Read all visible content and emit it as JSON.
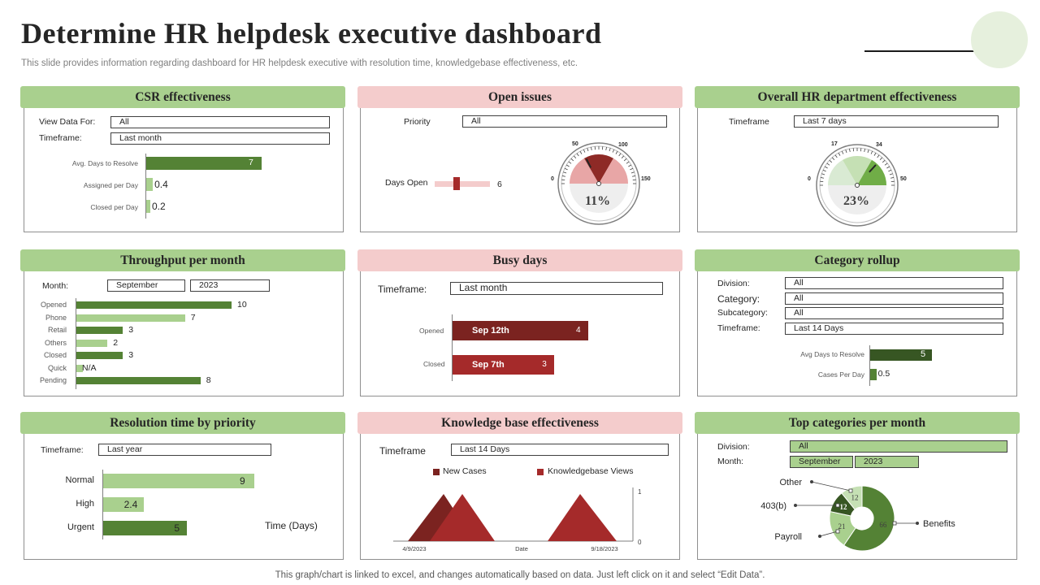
{
  "header": {
    "title": "Determine HR helpdesk executive dashboard",
    "subtitle": "This slide provides information regarding dashboard for HR helpdesk executive with resolution time, knowledgebase effectiveness, etc."
  },
  "footer": "This graph/chart is linked to excel, and changes automatically based on data. Just left click on it and select “Edit Data”.",
  "colors": {
    "green_header": "#a9d08e",
    "pink_header": "#f4cccc",
    "dark_green": "#548235",
    "light_green": "#a9d08e",
    "dark_red": "#7b2320",
    "red": "#a52a2a"
  },
  "csr": {
    "title": "CSR effectiveness",
    "view_label": "View Data For:",
    "view_value": "All",
    "timeframe_label": "Timeframe:",
    "timeframe_value": "Last month"
  },
  "open_issues": {
    "title": "Open issues",
    "priority_label": "Priority",
    "priority_value": "All",
    "days_open_label": "Days Open",
    "days_open_value": "6",
    "gauge": {
      "percent": "11%",
      "ticks": [
        "0",
        "50",
        "100",
        "150"
      ]
    }
  },
  "overall": {
    "title": "Overall HR department  effectiveness",
    "timeframe_label": "Timeframe",
    "timeframe_value": "Last 7 days",
    "gauge": {
      "percent": "23%",
      "ticks": [
        "0",
        "17",
        "34",
        "50"
      ]
    }
  },
  "throughput": {
    "title": "Throughput  per month",
    "month_label": "Month:",
    "month_value": "September",
    "year_value": "2023"
  },
  "busy": {
    "title": "Busy days",
    "timeframe_label": "Timeframe:",
    "timeframe_value": "Last month"
  },
  "rollup": {
    "title": "Category rollup",
    "division_label": "Division:",
    "division_value": "All",
    "category_label": "Category:",
    "category_value": "All",
    "subcategory_label": "Subcategory:",
    "subcategory_value": "All",
    "timeframe_label": "Timeframe:",
    "timeframe_value": "Last 14 Days"
  },
  "resolution": {
    "title": "Resolution time by priority",
    "timeframe_label": "Timeframe:",
    "timeframe_value": "Last year",
    "axis_label": "Time (Days)"
  },
  "kb": {
    "title": "Knowledge base effectiveness",
    "timeframe_label": "Timeframe",
    "timeframe_value": "Last 14 Days"
  },
  "topcat": {
    "title": "Top categories per month",
    "division_label": "Division:",
    "division_value": "All",
    "month_label": "Month:",
    "month_value": "September",
    "year_value": "2023"
  },
  "chart_data": [
    {
      "id": "csr",
      "type": "bar",
      "orientation": "horizontal",
      "categories": [
        "Avg. Days to Resolve",
        "Assigned per Day",
        "Closed per Day"
      ],
      "values": [
        7,
        0.4,
        0.2
      ],
      "labels": [
        "7",
        "0.4",
        "0.2"
      ]
    },
    {
      "id": "days_open",
      "type": "bar",
      "orientation": "horizontal",
      "categories": [
        "Days Open"
      ],
      "values": [
        6
      ],
      "xlim": [
        0,
        15
      ]
    },
    {
      "id": "open_issues_gauge",
      "type": "gauge",
      "value_percent": 11,
      "min": 0,
      "max": 150
    },
    {
      "id": "overall_gauge",
      "type": "gauge",
      "value_percent": 23,
      "min": 0,
      "max": 50
    },
    {
      "id": "throughput",
      "type": "bar",
      "orientation": "horizontal",
      "categories": [
        "Opened",
        "Phone",
        "Retail",
        "Others",
        "Closed",
        "Quick",
        "Pending"
      ],
      "values": [
        10,
        7,
        3,
        2,
        3,
        0,
        8
      ],
      "labels": [
        "10",
        "7",
        "3",
        "2",
        "3",
        "N/A",
        "8"
      ]
    },
    {
      "id": "busy_days",
      "type": "bar",
      "orientation": "horizontal",
      "categories": [
        "Opened",
        "Closed"
      ],
      "values": [
        4,
        3
      ],
      "bar_labels": [
        "Sep 12th",
        "Sep 7th"
      ],
      "labels": [
        "4",
        "3"
      ]
    },
    {
      "id": "rollup",
      "type": "bar",
      "orientation": "horizontal",
      "categories": [
        "Avg Days to Resolve",
        "Cases Per Day"
      ],
      "values": [
        5,
        0.5
      ],
      "labels": [
        "5",
        "0.5"
      ]
    },
    {
      "id": "resolution",
      "type": "bar",
      "orientation": "horizontal",
      "categories": [
        "Normal",
        "High",
        "Urgent"
      ],
      "values": [
        9,
        2.4,
        5
      ],
      "labels": [
        "9",
        "2.4",
        "5"
      ],
      "xlabel": "Time (Days)"
    },
    {
      "id": "kb",
      "type": "area",
      "series": [
        {
          "name": "New Cases"
        },
        {
          "name": "Knowledgebase Views"
        }
      ],
      "x_ticks": [
        "4/9/2023",
        "Date",
        "9/18/2023"
      ],
      "y_ticks": [
        "0",
        "1"
      ],
      "peaks": [
        1,
        1
      ]
    },
    {
      "id": "topcat",
      "type": "pie",
      "donut": true,
      "categories": [
        "Benefits",
        "Payroll",
        "403(b)",
        "Other"
      ],
      "values": [
        66,
        21,
        12,
        12
      ],
      "labels": [
        "66",
        "21",
        "12",
        "12"
      ]
    }
  ]
}
